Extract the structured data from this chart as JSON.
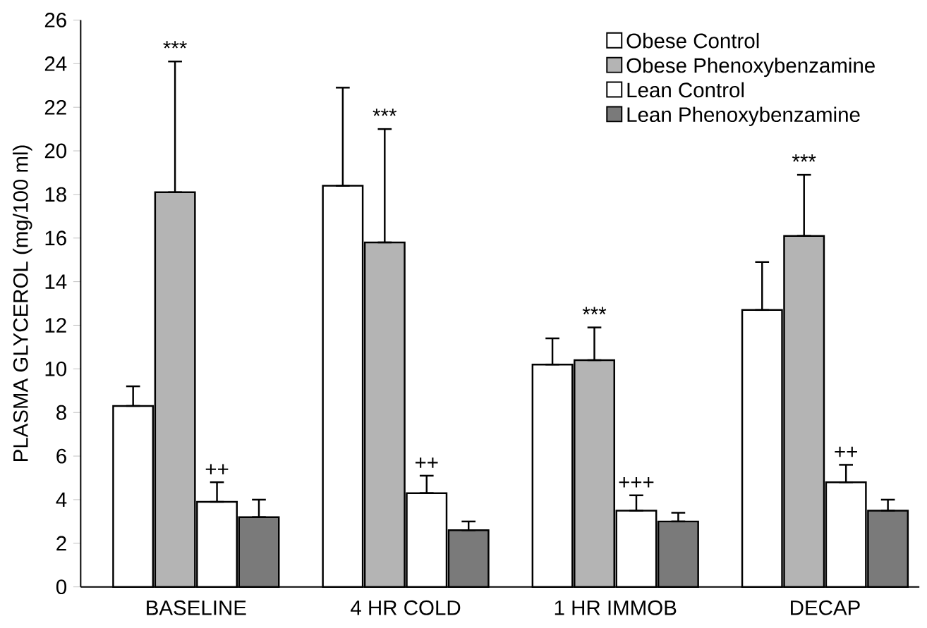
{
  "chart_data": {
    "type": "bar",
    "ylabel": "PLASMA GLYCEROL (mg/100 ml)",
    "categories": [
      "BASELINE",
      "4 HR COLD",
      "1 HR IMMOB",
      "DECAP"
    ],
    "series": [
      {
        "name": "Obese Control",
        "color": "#ffffff",
        "values": [
          8.3,
          18.4,
          10.2,
          12.7
        ],
        "errors": [
          [
            8.3,
            9.2
          ],
          [
            18.4,
            22.9
          ],
          [
            10.2,
            11.4
          ],
          [
            12.7,
            14.9
          ]
        ]
      },
      {
        "name": "Obese Phenoxybenzamine",
        "color": "#b4b4b4",
        "values": [
          18.1,
          15.8,
          10.4,
          16.1
        ],
        "errors": [
          [
            18.1,
            24.1
          ],
          [
            15.8,
            21.0
          ],
          [
            10.4,
            11.9
          ],
          [
            16.1,
            18.9
          ]
        ]
      },
      {
        "name": "Lean Control",
        "color": "#ffffff",
        "values": [
          3.9,
          4.3,
          3.5,
          4.8
        ],
        "errors": [
          [
            3.9,
            4.8
          ],
          [
            4.3,
            5.1
          ],
          [
            3.5,
            4.2
          ],
          [
            4.8,
            5.6
          ]
        ]
      },
      {
        "name": "Lean Phenoxybenzamine",
        "color": "#7a7a7a",
        "values": [
          3.2,
          2.6,
          3.0,
          3.5
        ],
        "errors": [
          [
            3.2,
            4.0
          ],
          [
            2.6,
            3.0
          ],
          [
            3.0,
            3.4
          ],
          [
            3.5,
            4.0
          ]
        ]
      }
    ],
    "ylim": [
      0,
      26
    ],
    "yticks": [
      0,
      2,
      4,
      6,
      8,
      10,
      12,
      14,
      16,
      18,
      20,
      22,
      24,
      26
    ],
    "legend": "top right",
    "grid": false,
    "annotations": [
      "***",
      {
        "text": "++",
        "x": "BASELINE",
        "y": 4.8
      },
      "***",
      {
        "text": "++",
        "x": "4 HR COLD",
        "y": 5.1
      },
      "***",
      {
        "text": "+++",
        "x": "1 HR IMMOB",
        "y": 4.2
      },
      "***",
      {
        "text": "++",
        "x": "DECAP",
        "y": 5.6
      }
    ]
  }
}
